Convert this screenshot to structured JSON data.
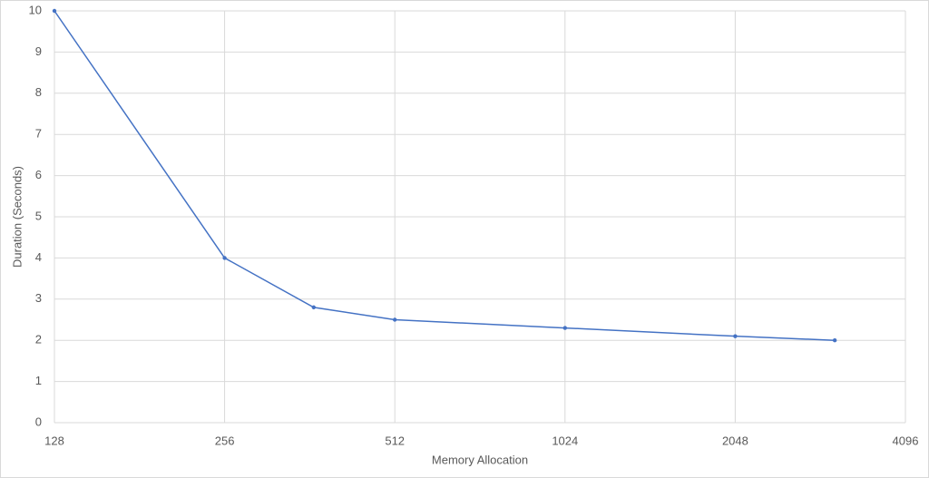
{
  "chart_data": {
    "type": "line",
    "x_label": "Memory Allocation",
    "y_label": "Duration (Seconds)",
    "x": [
      128,
      256,
      368,
      512,
      1024,
      2048,
      3072
    ],
    "series": [
      {
        "color": "#4472c4",
        "values": [
          10,
          4,
          2.8,
          2.5,
          2.3,
          2.1,
          2.0
        ]
      }
    ],
    "xscale": "log",
    "log_base": 2,
    "xlim": [
      128,
      4096
    ],
    "xticks": [
      128,
      256,
      512,
      1024,
      2048,
      4096
    ],
    "ylim": [
      0,
      10
    ],
    "yticks": [
      0,
      1,
      2,
      3,
      4,
      5,
      6,
      7,
      8,
      9,
      10
    ],
    "grid": true
  }
}
